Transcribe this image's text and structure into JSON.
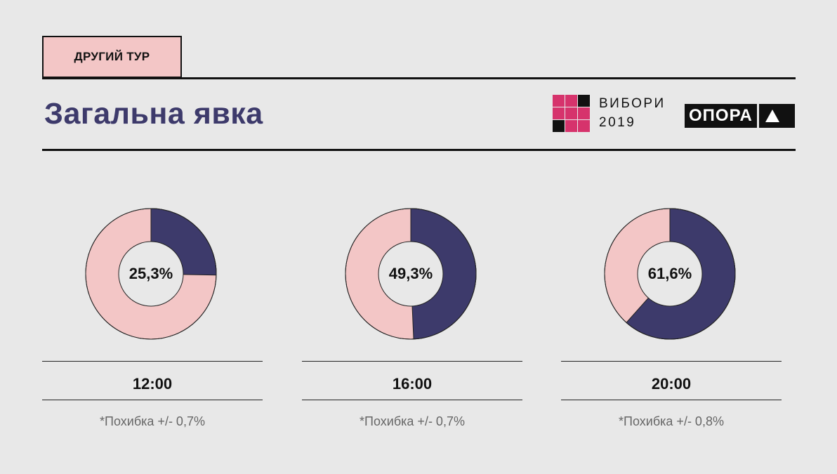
{
  "header": {
    "tag": "ДРУГИЙ ТУР",
    "title": "Загальна явка"
  },
  "logos": {
    "vybory_line1": "ВИБОРИ",
    "vybory_line2": "2019",
    "opora": "ОПОРА"
  },
  "colors": {
    "turnout": "#3d3a6b",
    "remainder": "#f3c6c6",
    "accent": "#d6336c",
    "background": "#e8e8e8"
  },
  "chart_data": [
    {
      "type": "pie",
      "time": "12:00",
      "value": 25.3,
      "label": "25,3%",
      "note": "*Похибка +/- 0,7%"
    },
    {
      "type": "pie",
      "time": "16:00",
      "value": 49.3,
      "label": "49,3%",
      "note": "*Похибка +/- 0,7%"
    },
    {
      "type": "pie",
      "time": "20:00",
      "value": 61.6,
      "label": "61,6%",
      "note": "*Похибка +/- 0,8%"
    }
  ]
}
